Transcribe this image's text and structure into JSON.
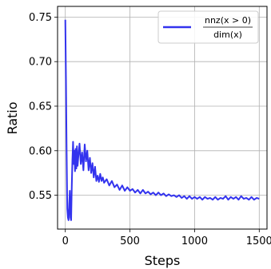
{
  "chart_data": {
    "type": "line",
    "xlabel": "Steps",
    "ylabel": "Ratio",
    "xlim": [
      -60,
      1560
    ],
    "ylim": [
      0.512,
      0.762
    ],
    "xticks": [
      0,
      500,
      1000,
      1500
    ],
    "xtick_labels": [
      "0",
      "500",
      "1000",
      "1500"
    ],
    "yticks": [
      0.55,
      0.6,
      0.65,
      0.7,
      0.75
    ],
    "ytick_labels": [
      "0.55",
      "0.60",
      "0.65",
      "0.70",
      "0.75"
    ],
    "grid": true,
    "legend_position": "top-right",
    "series": [
      {
        "name": "nnz(x > 0) / dim(x)",
        "legend_numerator": "nnz(x > 0)",
        "legend_denominator": "dim(x)",
        "color": "#3333ee",
        "x": [
          0,
          5,
          10,
          15,
          20,
          25,
          30,
          35,
          40,
          45,
          50,
          55,
          60,
          65,
          70,
          75,
          80,
          85,
          90,
          95,
          100,
          110,
          120,
          130,
          140,
          150,
          160,
          170,
          180,
          190,
          200,
          210,
          220,
          230,
          240,
          250,
          260,
          270,
          280,
          290,
          300,
          320,
          340,
          360,
          380,
          400,
          420,
          440,
          460,
          480,
          500,
          520,
          540,
          560,
          580,
          600,
          620,
          640,
          660,
          680,
          700,
          720,
          740,
          760,
          780,
          800,
          820,
          840,
          860,
          880,
          900,
          920,
          940,
          960,
          980,
          1000,
          1020,
          1040,
          1060,
          1080,
          1100,
          1120,
          1140,
          1160,
          1180,
          1200,
          1220,
          1240,
          1260,
          1280,
          1300,
          1320,
          1340,
          1360,
          1380,
          1400,
          1420,
          1440,
          1460,
          1480,
          1500
        ],
        "y": [
          0.747,
          0.68,
          0.6,
          0.535,
          0.525,
          0.522,
          0.54,
          0.555,
          0.525,
          0.522,
          0.56,
          0.59,
          0.61,
          0.585,
          0.6,
          0.577,
          0.602,
          0.58,
          0.605,
          0.583,
          0.592,
          0.608,
          0.585,
          0.598,
          0.578,
          0.607,
          0.588,
          0.6,
          0.578,
          0.592,
          0.575,
          0.586,
          0.57,
          0.582,
          0.566,
          0.572,
          0.565,
          0.574,
          0.566,
          0.57,
          0.564,
          0.568,
          0.561,
          0.566,
          0.559,
          0.562,
          0.556,
          0.561,
          0.555,
          0.559,
          0.555,
          0.557,
          0.553,
          0.556,
          0.552,
          0.556,
          0.552,
          0.554,
          0.551,
          0.553,
          0.55,
          0.553,
          0.55,
          0.552,
          0.549,
          0.551,
          0.549,
          0.55,
          0.548,
          0.55,
          0.547,
          0.549,
          0.546,
          0.549,
          0.546,
          0.548,
          0.546,
          0.548,
          0.545,
          0.548,
          0.546,
          0.547,
          0.545,
          0.548,
          0.545,
          0.547,
          0.546,
          0.549,
          0.545,
          0.548,
          0.546,
          0.548,
          0.545,
          0.549,
          0.546,
          0.547,
          0.545,
          0.548,
          0.545,
          0.547,
          0.546
        ]
      }
    ]
  }
}
